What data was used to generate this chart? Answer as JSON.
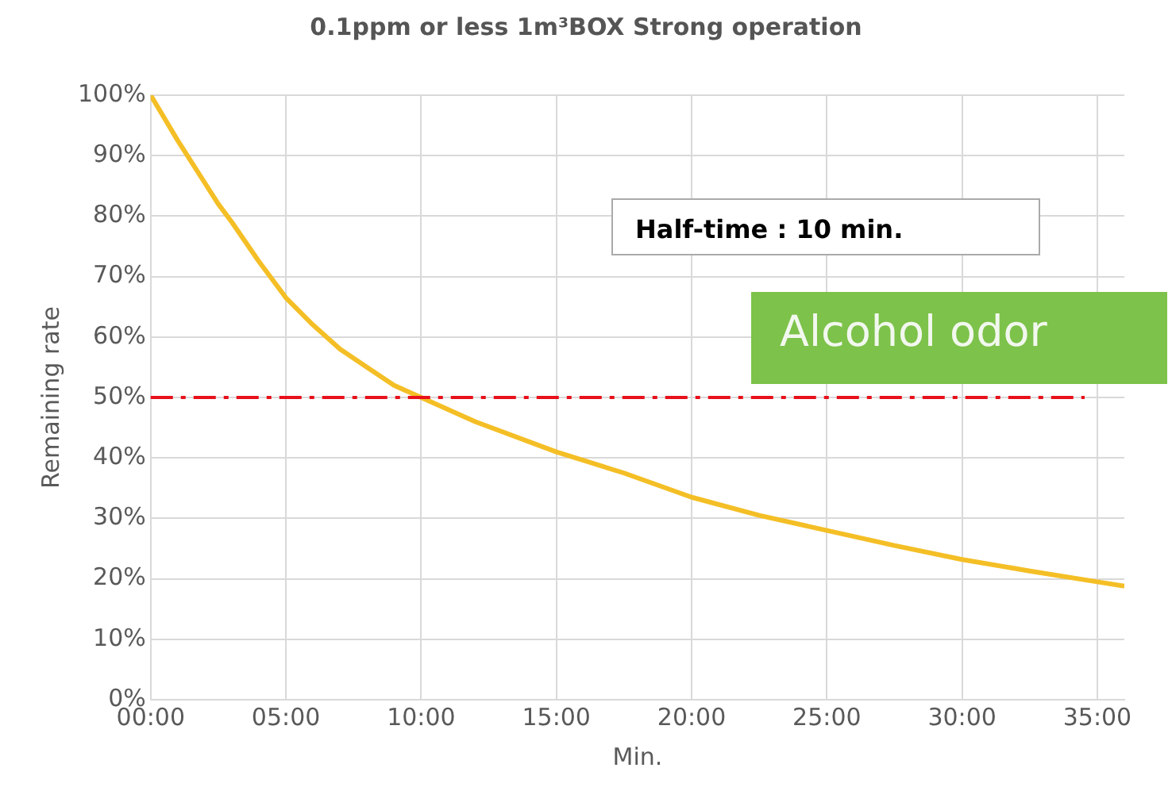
{
  "chart_data": {
    "type": "line",
    "title": "0.1ppm or less 1m³BOX Strong operation",
    "xlabel": "Min.",
    "ylabel": "Remaining rate",
    "x": [
      0,
      1,
      2,
      2.5,
      3,
      4,
      5,
      6,
      7,
      8,
      9,
      10,
      12,
      15,
      17.5,
      20,
      22.5,
      25,
      27.5,
      30,
      32.5,
      35,
      36
    ],
    "series": [
      {
        "color": "#f4bf26",
        "values": [
          100,
          92.5,
          85.5,
          82,
          79,
          72.5,
          66.5,
          62,
          58,
          55,
          52,
          50,
          46,
          41,
          37.5,
          33.5,
          30.5,
          28,
          25.5,
          23.2,
          21.3,
          19.5,
          18.8
        ]
      }
    ],
    "xlim": [
      0,
      36
    ],
    "xticks": [
      {
        "value": 0,
        "label": "00:00"
      },
      {
        "value": 5,
        "label": "05:00"
      },
      {
        "value": 10,
        "label": "10:00"
      },
      {
        "value": 15,
        "label": "15:00"
      },
      {
        "value": 20,
        "label": "20:00"
      },
      {
        "value": 25,
        "label": "25:00"
      },
      {
        "value": 30,
        "label": "30:00"
      },
      {
        "value": 35,
        "label": "35:00"
      }
    ],
    "ylim": [
      0,
      100
    ],
    "yticks": [
      {
        "value": 0,
        "label": "0%"
      },
      {
        "value": 10,
        "label": "10%"
      },
      {
        "value": 20,
        "label": "20%"
      },
      {
        "value": 30,
        "label": "30%"
      },
      {
        "value": 40,
        "label": "40%"
      },
      {
        "value": 50,
        "label": "50%"
      },
      {
        "value": 60,
        "label": "60%"
      },
      {
        "value": 70,
        "label": "70%"
      },
      {
        "value": 80,
        "label": "80%"
      },
      {
        "value": 90,
        "label": "90%"
      },
      {
        "value": 100,
        "label": "100%"
      }
    ],
    "ref_lines": [
      {
        "axis": "y",
        "value": 50,
        "color": "#e8101a",
        "line_style": "dashdot"
      }
    ],
    "annotations": [
      "Half-time : 10 min.",
      "Alcohol odor"
    ],
    "grid": true,
    "marker": "none",
    "line_style": "solid",
    "legend": false
  }
}
